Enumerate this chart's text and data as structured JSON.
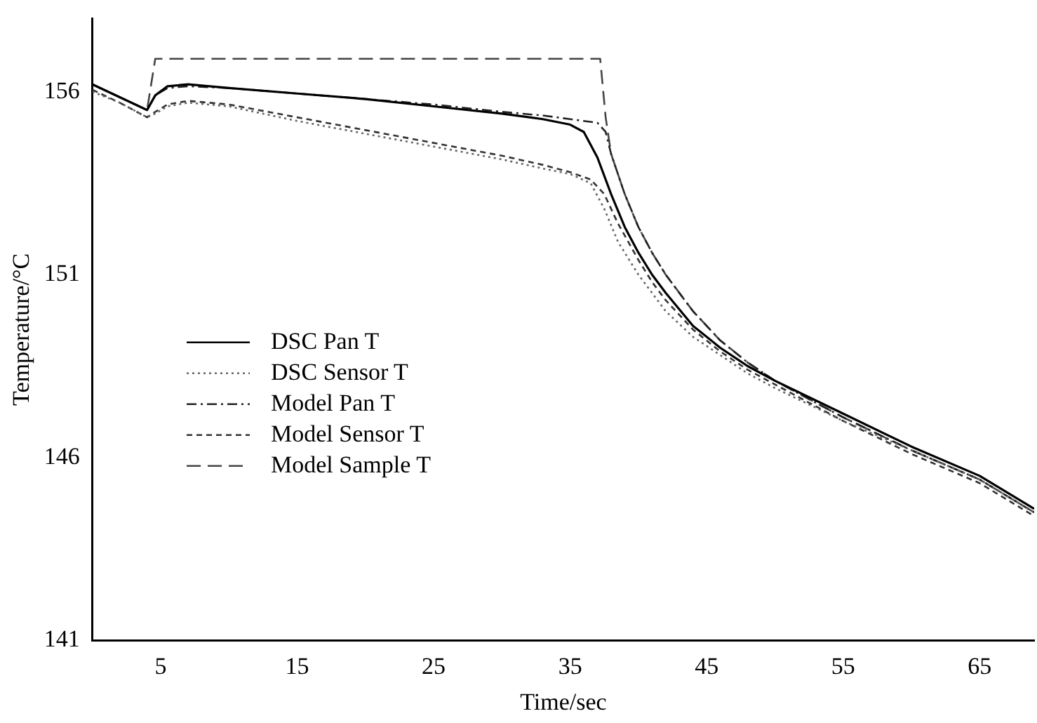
{
  "chart_data": {
    "type": "line",
    "xlabel": "Time/sec",
    "ylabel": "Temperature/°C",
    "xlim": [
      0,
      69
    ],
    "xticks": [
      5,
      15,
      25,
      35,
      45,
      55,
      65
    ],
    "ylim": [
      141,
      158
    ],
    "yticks": [
      141,
      146,
      151,
      156
    ],
    "grid": false,
    "legend": "left",
    "marker": "none",
    "series": [
      {
        "name": "DSC Pan T",
        "color": "#000000",
        "line_style": "solid",
        "x": [
          0,
          2,
          4,
          4.6,
          5.5,
          7,
          10,
          15,
          20,
          25,
          30,
          33,
          35,
          36,
          37,
          38,
          39,
          40,
          41,
          42,
          44,
          46,
          48,
          50,
          55,
          60,
          65,
          69
        ],
        "values": [
          156.2,
          155.85,
          155.5,
          155.9,
          156.15,
          156.2,
          156.1,
          155.95,
          155.8,
          155.6,
          155.4,
          155.25,
          155.1,
          154.9,
          154.2,
          153.2,
          152.3,
          151.6,
          151.0,
          150.5,
          149.6,
          149.0,
          148.5,
          148.1,
          147.2,
          146.3,
          145.5,
          144.6
        ]
      },
      {
        "name": "DSC Sensor T",
        "color": "#666666",
        "line_style": "dotted",
        "x": [
          0,
          2,
          4,
          4.6,
          5.5,
          7,
          10,
          15,
          20,
          25,
          30,
          33,
          35,
          36.5,
          37.5,
          38.5,
          40,
          41,
          42,
          44,
          46,
          48,
          50,
          55,
          60,
          65,
          69
        ],
        "values": [
          156.0,
          155.7,
          155.3,
          155.4,
          155.6,
          155.7,
          155.6,
          155.2,
          154.85,
          154.5,
          154.15,
          153.9,
          153.75,
          153.5,
          152.8,
          151.9,
          151.0,
          150.5,
          150.0,
          149.3,
          148.8,
          148.3,
          147.9,
          147.0,
          146.2,
          145.4,
          144.5
        ]
      },
      {
        "name": "Model Pan T",
        "color": "#222222",
        "line_style": "dashdot",
        "x": [
          0,
          2,
          4,
          4.6,
          5.5,
          7,
          10,
          15,
          20,
          25,
          30,
          33,
          35,
          37,
          37.6,
          38,
          39,
          40,
          41,
          42,
          44,
          46,
          48,
          50,
          55,
          60,
          65,
          69
        ],
        "values": [
          156.2,
          155.85,
          155.5,
          155.9,
          156.1,
          156.15,
          156.1,
          155.95,
          155.8,
          155.65,
          155.45,
          155.35,
          155.25,
          155.15,
          154.9,
          154.3,
          153.2,
          152.3,
          151.6,
          151.0,
          150.0,
          149.2,
          148.6,
          148.1,
          147.1,
          146.2,
          145.4,
          144.5
        ]
      },
      {
        "name": "Model Sensor T",
        "color": "#333333",
        "line_style": "dashed",
        "x": [
          0,
          2,
          4,
          4.6,
          5.5,
          7,
          10,
          15,
          20,
          25,
          30,
          33,
          35,
          36.5,
          37.5,
          38.5,
          40,
          41,
          42,
          44,
          46,
          48,
          50,
          55,
          60,
          65,
          69
        ],
        "values": [
          156.05,
          155.7,
          155.3,
          155.45,
          155.65,
          155.75,
          155.65,
          155.3,
          154.95,
          154.6,
          154.25,
          154.0,
          153.8,
          153.6,
          153.2,
          152.4,
          151.4,
          150.8,
          150.3,
          149.5,
          148.9,
          148.4,
          148.0,
          147.0,
          146.1,
          145.3,
          144.4
        ]
      },
      {
        "name": "Model Sample T",
        "color": "#444444",
        "line_style": "longdash",
        "x": [
          0,
          2,
          4,
          4.6,
          15,
          25,
          35,
          37.2,
          37.6,
          38,
          39,
          40,
          41,
          42,
          44,
          46,
          48,
          50,
          55,
          60,
          65,
          69
        ],
        "values": [
          156.2,
          155.85,
          155.5,
          156.9,
          156.9,
          156.9,
          156.9,
          156.9,
          155.3,
          154.3,
          153.2,
          152.3,
          151.6,
          151.0,
          150.0,
          149.2,
          148.6,
          148.1,
          147.1,
          146.2,
          145.4,
          144.5
        ]
      }
    ]
  }
}
